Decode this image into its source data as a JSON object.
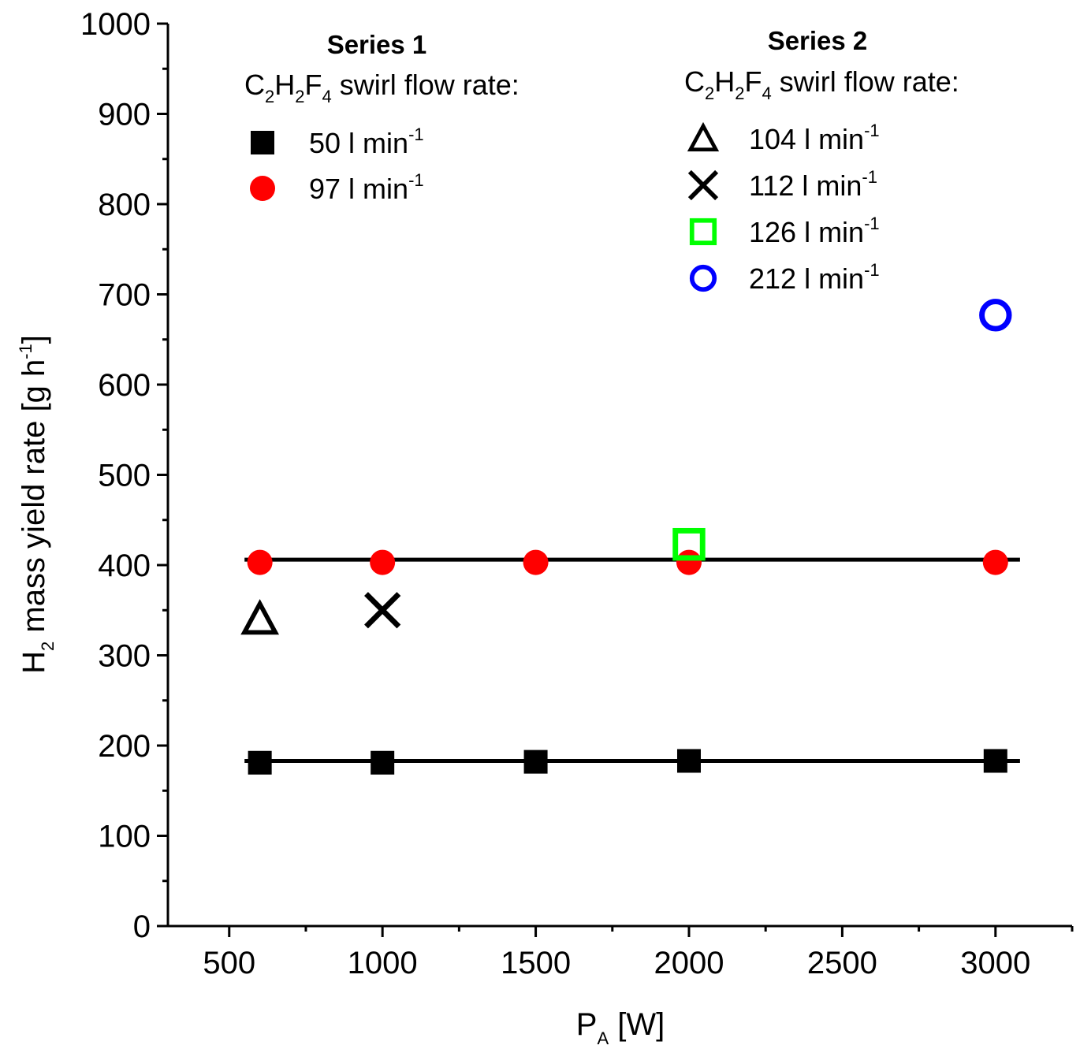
{
  "chart_data": {
    "type": "scatter",
    "xlabel": {
      "main": "P",
      "sub": "A",
      "unit": " [W]"
    },
    "ylabel": {
      "main": "H",
      "sub": "2",
      "text": " mass yield rate [g h",
      "sup": "-1",
      "close": "]"
    },
    "xlim": [
      300,
      3250
    ],
    "ylim": [
      0,
      1000
    ],
    "x_ticks": [
      500,
      1000,
      1500,
      2000,
      2500,
      3000
    ],
    "y_ticks": [
      0,
      100,
      200,
      300,
      400,
      500,
      600,
      700,
      800,
      900,
      1000
    ],
    "grid": false,
    "legend_groups": [
      {
        "title": "Series 1",
        "subtitle": {
          "c": "C",
          "s1": "2",
          "h": "H",
          "s2": "2",
          "f": "F",
          "s3": "4",
          "rest": " swirl flow rate:"
        }
      },
      {
        "title": "Series 2",
        "subtitle": {
          "c": "C",
          "s1": "2",
          "h": "H",
          "s2": "2",
          "f": "F",
          "s3": "4",
          "rest": " swirl flow rate:"
        }
      }
    ],
    "series": [
      {
        "name": "50 l min",
        "unit_sup": "-1",
        "group": 0,
        "marker": "filled-square",
        "color": "#000000",
        "x": [
          600,
          1000,
          1500,
          2000,
          3000
        ],
        "y": [
          181,
          181,
          182,
          183,
          183
        ]
      },
      {
        "name": "97 l min",
        "unit_sup": "-1",
        "group": 0,
        "marker": "filled-circle",
        "color": "#ff0000",
        "x": [
          600,
          1000,
          1500,
          2000,
          3000
        ],
        "y": [
          403,
          403,
          403,
          403,
          403
        ]
      },
      {
        "name": "104 l min",
        "unit_sup": "-1",
        "group": 1,
        "marker": "open-triangle",
        "color": "#000000",
        "x": [
          600
        ],
        "y": [
          340
        ]
      },
      {
        "name": "112 l min",
        "unit_sup": "-1",
        "group": 1,
        "marker": "cross",
        "color": "#000000",
        "x": [
          1000
        ],
        "y": [
          350
        ]
      },
      {
        "name": "126 l min",
        "unit_sup": "-1",
        "group": 1,
        "marker": "open-square",
        "color": "#00ff00",
        "x": [
          2000
        ],
        "y": [
          423
        ]
      },
      {
        "name": "212 l min",
        "unit_sup": "-1",
        "group": 1,
        "marker": "open-circle",
        "color": "#0000ff",
        "x": [
          3000
        ],
        "y": [
          677
        ]
      }
    ],
    "fit_lines": [
      {
        "x": [
          550,
          3080
        ],
        "y": [
          183,
          183
        ]
      },
      {
        "x": [
          550,
          3080
        ],
        "y": [
          406,
          406
        ]
      }
    ]
  }
}
